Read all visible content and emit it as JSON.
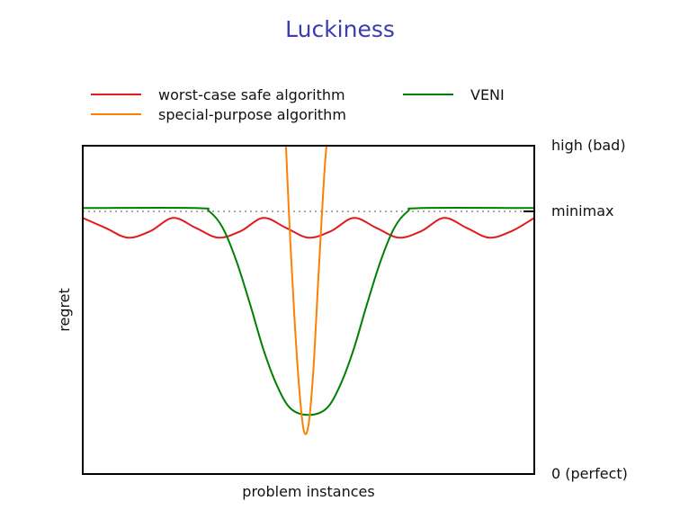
{
  "chart_data": {
    "type": "line",
    "title": "Luckiness",
    "xlabel": "problem instances",
    "ylabel": "regret",
    "x_range": [
      0,
      1
    ],
    "y_range": [
      0,
      1
    ],
    "y_ticks": [
      {
        "value": 1.0,
        "label": "high (bad)"
      },
      {
        "value": 0.8,
        "label": "minimax"
      },
      {
        "value": 0.0,
        "label": "0 (perfect)"
      }
    ],
    "reference_line": {
      "name": "minimax",
      "value": 0.8,
      "style": "dotted",
      "color": "#aaaaaa"
    },
    "legend_position": "top",
    "series": [
      {
        "name": "worst-case safe algorithm",
        "color": "#e31a1c",
        "x": [
          0.0,
          0.05,
          0.1,
          0.15,
          0.2,
          0.25,
          0.3,
          0.35,
          0.4,
          0.45,
          0.5,
          0.55,
          0.6,
          0.65,
          0.7,
          0.75,
          0.8,
          0.85,
          0.9,
          0.95,
          1.0
        ],
        "y": [
          0.78,
          0.75,
          0.72,
          0.74,
          0.78,
          0.75,
          0.72,
          0.74,
          0.78,
          0.75,
          0.72,
          0.74,
          0.78,
          0.75,
          0.72,
          0.74,
          0.78,
          0.75,
          0.72,
          0.74,
          0.78
        ]
      },
      {
        "name": "special-purpose algorithm",
        "color": "#ff8000",
        "x": [
          0.45,
          0.46,
          0.47,
          0.48,
          0.49,
          0.5,
          0.51,
          0.52,
          0.53,
          0.54,
          0.55
        ],
        "y": [
          1.0,
          0.7,
          0.45,
          0.25,
          0.13,
          0.15,
          0.3,
          0.55,
          0.8,
          1.0,
          1.0
        ]
      },
      {
        "name": "VENI",
        "color": "#008000",
        "x": [
          0.0,
          0.25,
          0.28,
          0.31,
          0.34,
          0.37,
          0.4,
          0.43,
          0.46,
          0.5,
          0.54,
          0.57,
          0.6,
          0.63,
          0.66,
          0.69,
          0.72,
          0.75,
          1.0
        ],
        "y": [
          0.81,
          0.81,
          0.8,
          0.75,
          0.65,
          0.52,
          0.38,
          0.27,
          0.2,
          0.18,
          0.2,
          0.27,
          0.38,
          0.52,
          0.65,
          0.75,
          0.8,
          0.81,
          0.81
        ]
      }
    ]
  }
}
